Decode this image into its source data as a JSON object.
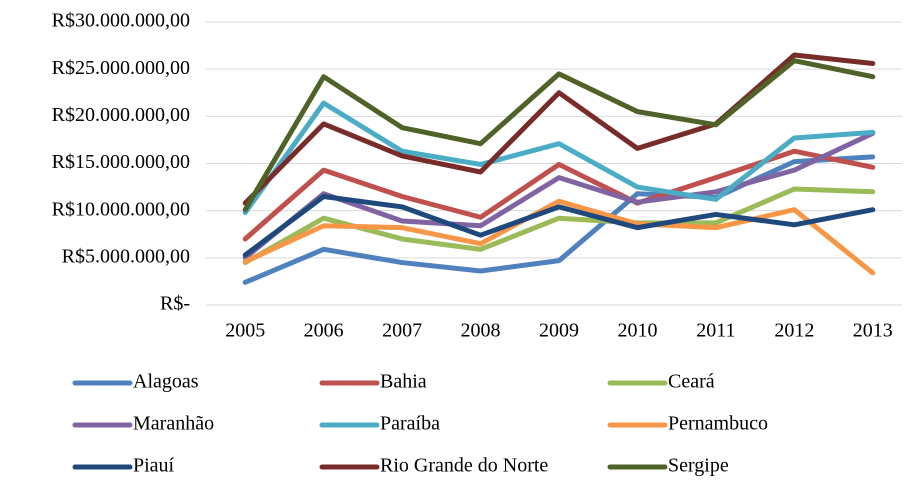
{
  "chart_data": {
    "type": "line",
    "categories": [
      "2005",
      "2006",
      "2007",
      "2008",
      "2009",
      "2010",
      "2011",
      "2012",
      "2013"
    ],
    "series": [
      {
        "name": "Alagoas",
        "color": "#4f81bd",
        "values": [
          2400000,
          5900000,
          4500000,
          3600000,
          4700000,
          11800000,
          11400000,
          15200000,
          15700000
        ]
      },
      {
        "name": "Bahia",
        "color": "#c0504d",
        "values": [
          7000000,
          14300000,
          11500000,
          9300000,
          14900000,
          10800000,
          13500000,
          16300000,
          14600000
        ]
      },
      {
        "name": "Ceará",
        "color": "#9bbb59",
        "values": [
          4500000,
          9200000,
          7000000,
          5900000,
          9200000,
          8700000,
          8700000,
          12300000,
          12000000
        ]
      },
      {
        "name": "Maranhão",
        "color": "#8064a2",
        "values": [
          5000000,
          11800000,
          8900000,
          8400000,
          13500000,
          10900000,
          12000000,
          14300000,
          18200000
        ]
      },
      {
        "name": "Paraíba",
        "color": "#4bacc6",
        "values": [
          9800000,
          21400000,
          16300000,
          14900000,
          17100000,
          12500000,
          11200000,
          17700000,
          18300000
        ]
      },
      {
        "name": "Pernambuco",
        "color": "#f79646",
        "values": [
          4600000,
          8400000,
          8200000,
          6500000,
          11000000,
          8600000,
          8200000,
          10100000,
          3400000
        ]
      },
      {
        "name": "Piauí",
        "color": "#1f497d",
        "values": [
          5300000,
          11500000,
          10400000,
          7400000,
          10400000,
          8200000,
          9600000,
          8500000,
          10100000
        ]
      },
      {
        "name": "Rio Grande do Norte",
        "color": "#772c2a",
        "values": [
          10800000,
          19200000,
          15800000,
          14100000,
          22500000,
          16600000,
          19200000,
          26500000,
          25600000
        ]
      },
      {
        "name": "Sergipe",
        "color": "#4f6228",
        "values": [
          10100000,
          24200000,
          18800000,
          17100000,
          24500000,
          20500000,
          19100000,
          25900000,
          24200000
        ]
      }
    ],
    "ylim": [
      0,
      30000000
    ],
    "yticks": [
      {
        "value": 0,
        "label": "R$-"
      },
      {
        "value": 5000000,
        "label": "R$5.000.000,00"
      },
      {
        "value": 10000000,
        "label": "R$10.000.000,00"
      },
      {
        "value": 15000000,
        "label": "R$15.000.000,00"
      },
      {
        "value": 20000000,
        "label": "R$20.000.000,00"
      },
      {
        "value": 25000000,
        "label": "R$25.000.000,00"
      },
      {
        "value": 30000000,
        "label": "R$30.000.000,00"
      }
    ],
    "grid": true,
    "legend": "bottom"
  }
}
